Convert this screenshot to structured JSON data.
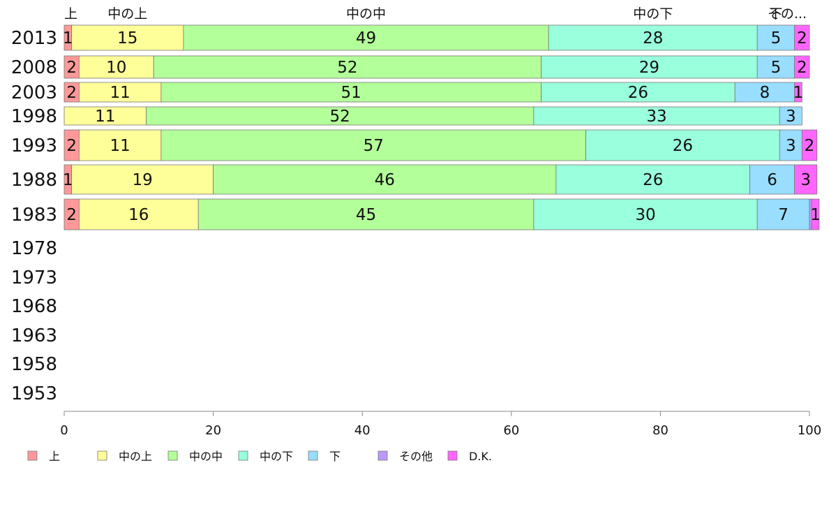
{
  "chart_data": {
    "type": "bar",
    "orientation": "horizontal",
    "stacked": true,
    "categories": [
      "2013",
      "2008",
      "2003",
      "1998",
      "1993",
      "1988",
      "1983",
      "1978",
      "1973",
      "1968",
      "1963",
      "1958",
      "1953"
    ],
    "top_labels": [
      "上",
      "中の上",
      "中の中",
      "中の下",
      "下",
      "その..."
    ],
    "series": [
      {
        "name": "上",
        "color": "#ff9999",
        "values": [
          1,
          2,
          2,
          0,
          2,
          1,
          2,
          null,
          null,
          null,
          null,
          null,
          null
        ]
      },
      {
        "name": "中の上",
        "color": "#ffff99",
        "values": [
          15,
          10,
          11,
          11,
          11,
          19,
          16,
          null,
          null,
          null,
          null,
          null,
          null
        ]
      },
      {
        "name": "中の中",
        "color": "#b3ff99",
        "values": [
          49,
          52,
          51,
          52,
          57,
          46,
          45,
          null,
          null,
          null,
          null,
          null,
          null
        ]
      },
      {
        "name": "中の下",
        "color": "#99ffdd",
        "values": [
          28,
          29,
          26,
          33,
          26,
          26,
          30,
          null,
          null,
          null,
          null,
          null,
          null
        ]
      },
      {
        "name": "下",
        "color": "#99ddff",
        "values": [
          5,
          5,
          8,
          3,
          3,
          6,
          7,
          null,
          null,
          null,
          null,
          null,
          null
        ]
      },
      {
        "name": "その他",
        "color": "#bb99ff",
        "values": [
          0,
          0,
          0,
          0,
          0,
          0,
          0.3,
          null,
          null,
          null,
          null,
          null,
          null
        ]
      },
      {
        "name": "D.K.",
        "color": "#ff66ff",
        "values": [
          2,
          2,
          1,
          0,
          2,
          3,
          1,
          null,
          null,
          null,
          null,
          null,
          null
        ]
      }
    ],
    "xlim": [
      0,
      100
    ],
    "xticks": [
      "0",
      "20",
      "40",
      "60",
      "80",
      "100"
    ],
    "grid": false,
    "legend_position": "bottom"
  }
}
